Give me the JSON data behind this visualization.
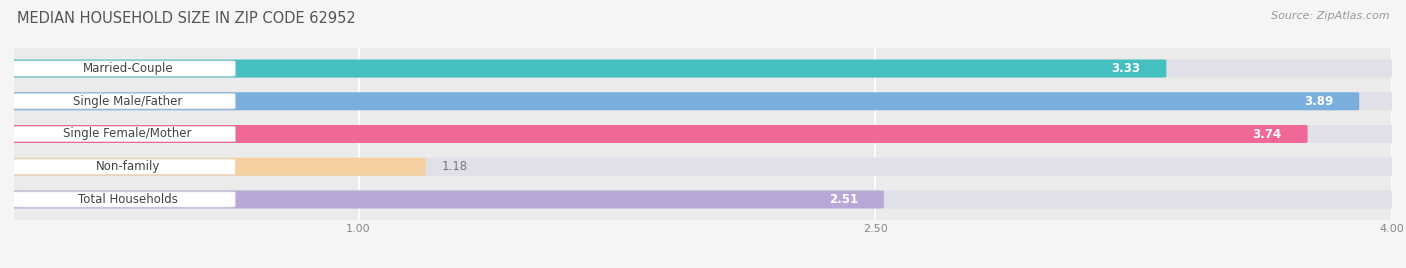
{
  "title": "MEDIAN HOUSEHOLD SIZE IN ZIP CODE 62952",
  "source": "Source: ZipAtlas.com",
  "categories": [
    "Married-Couple",
    "Single Male/Father",
    "Single Female/Mother",
    "Non-family",
    "Total Households"
  ],
  "values": [
    3.33,
    3.89,
    3.74,
    1.18,
    2.51
  ],
  "bar_colors": [
    "#45bfbf",
    "#7aaedc",
    "#f06898",
    "#f5cfa0",
    "#b8a8d8"
  ],
  "xlim_min": 0.0,
  "xlim_max": 4.0,
  "xticks": [
    1.0,
    2.5,
    4.0
  ],
  "xtick_labels": [
    "1.00",
    "2.50",
    "4.00"
  ],
  "fig_bg": "#f5f5f5",
  "plot_bg": "#ebebeb",
  "bar_bg": "#e0e0e8",
  "grid_color": "#ffffff",
  "title_color": "#555555",
  "source_color": "#999999",
  "label_color": "#444444",
  "value_color_inside": "#ffffff",
  "value_color_outside": "#777777",
  "title_fontsize": 10.5,
  "source_fontsize": 8,
  "label_fontsize": 8.5,
  "value_fontsize": 8.5,
  "bar_height": 0.52,
  "bar_gap": 0.18
}
